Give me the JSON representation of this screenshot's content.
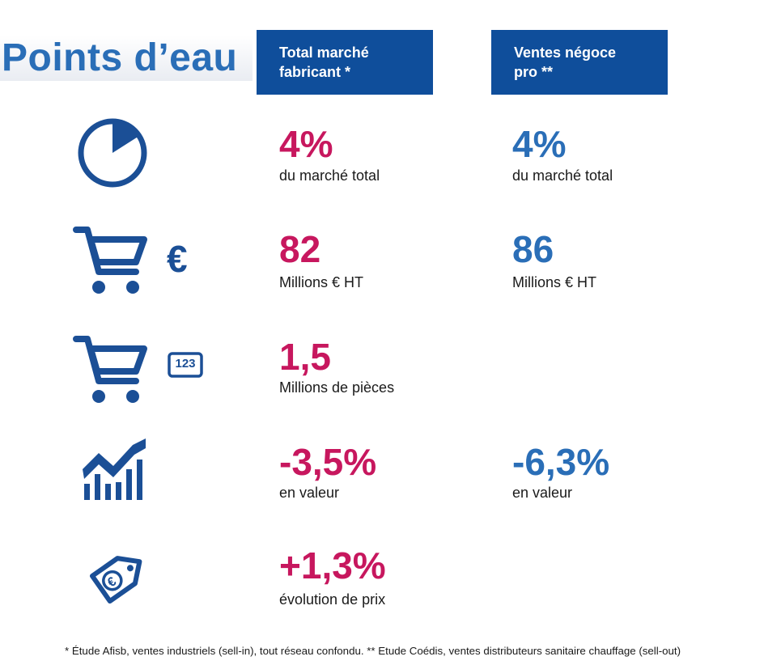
{
  "title": "Points d’eau",
  "columns": [
    {
      "line1": "Total marché",
      "line2": "fabricant *"
    },
    {
      "line1": "Ventes négoce",
      "line2": "pro **"
    }
  ],
  "rows": [
    {
      "icon": "pie-icon",
      "col1": {
        "value": "4%",
        "label": "du marché total"
      },
      "col2": {
        "value": "4%",
        "label": "du marché total"
      }
    },
    {
      "icon": "cart-euro-icon",
      "col1": {
        "value": "82",
        "label": "Millions € HT"
      },
      "col2": {
        "value": "86",
        "label": "Millions € HT"
      }
    },
    {
      "icon": "cart-123-icon",
      "badge": "123",
      "col1": {
        "value": "1,5",
        "label": "Millions de pièces"
      }
    },
    {
      "icon": "trend-chart-icon",
      "col1": {
        "value": "-3,5%",
        "label": "en valeur"
      },
      "col2": {
        "value": "-6,3%",
        "label": "en valeur"
      }
    },
    {
      "icon": "price-tag-euro-icon",
      "col1": {
        "value": "+1,3%",
        "label": "évolution de prix"
      }
    }
  ],
  "footnote": "* Étude Afisb, ventes industriels (sell-in), tout réseau confondu. ** Etude Coédis, ventes distributeurs sanitaire chauffage (sell-out)",
  "colors": {
    "navy": "#0f4e9b",
    "icon_blue": "#1b4f96",
    "magenta": "#c7175e",
    "blue": "#2a6eb7"
  }
}
